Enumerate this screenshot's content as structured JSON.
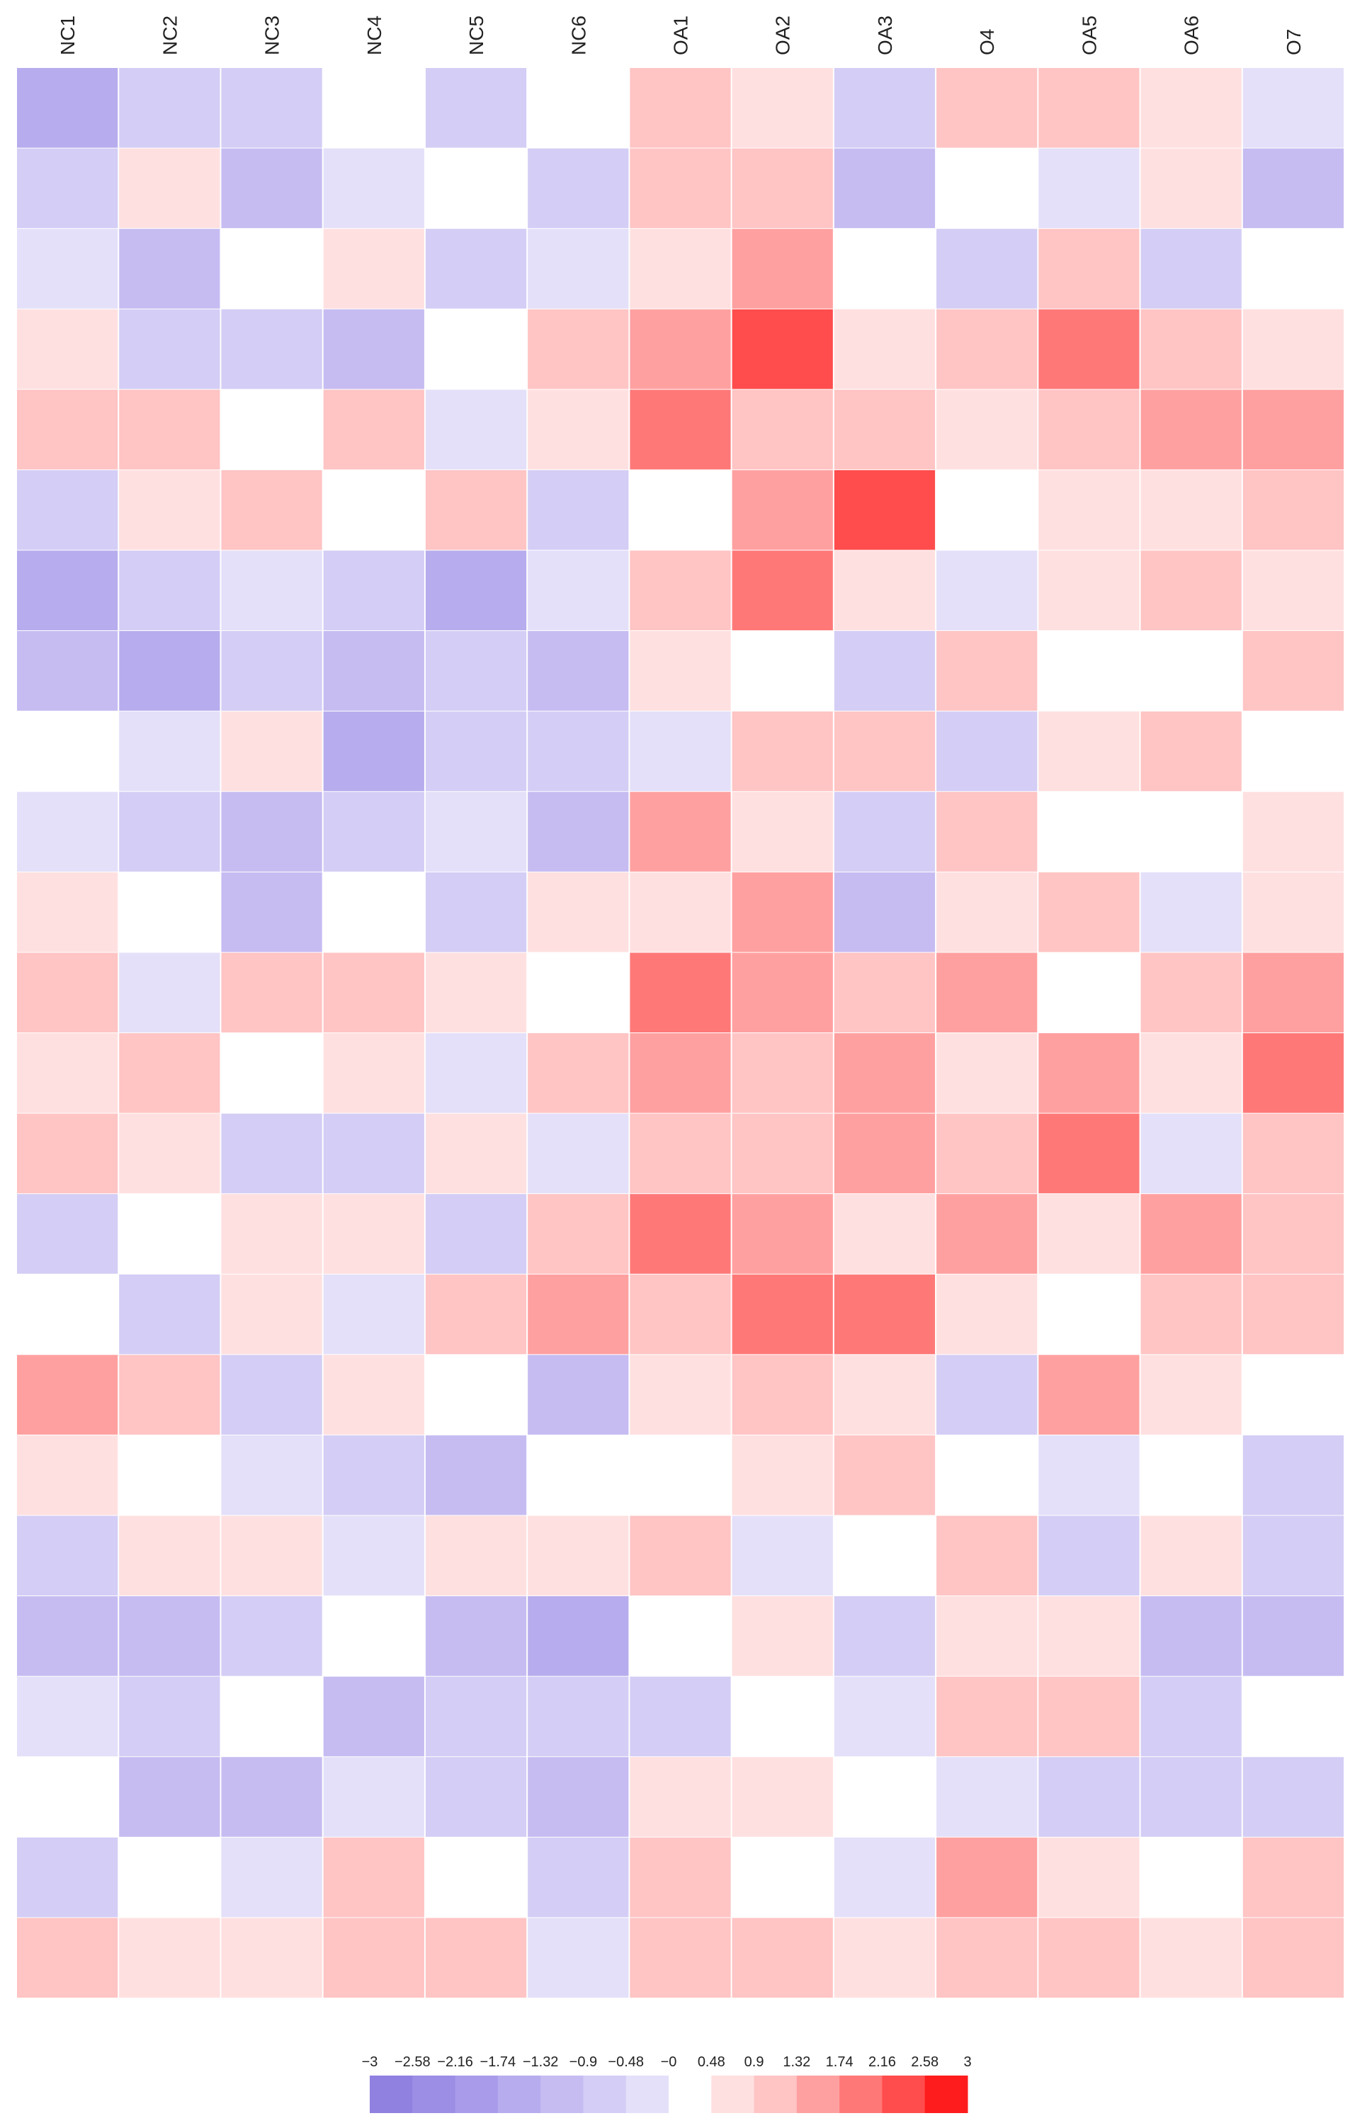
{
  "chart_data": {
    "type": "heatmap",
    "columns": [
      "NC1",
      "NC2",
      "NC3",
      "NC4",
      "NC5",
      "NC6",
      "OA1",
      "OA2",
      "OA3",
      "O4",
      "OA5",
      "OA6",
      "O7"
    ],
    "z": [
      [
        -1.5,
        -0.8,
        -0.6,
        0.3,
        -0.9,
        0.4,
        1.2,
        0.8,
        -0.5,
        1.0,
        1.3,
        0.6,
        -0.4
      ],
      [
        -0.9,
        0.5,
        -1.0,
        -0.4,
        0.2,
        -0.7,
        0.9,
        1.1,
        -1.2,
        0.4,
        -0.3,
        0.8,
        -1.1
      ],
      [
        -0.2,
        -1.3,
        0.4,
        0.7,
        -0.6,
        -0.2,
        0.6,
        1.4,
        0.3,
        -0.8,
        0.9,
        -0.5,
        0.2
      ],
      [
        0.6,
        -0.5,
        -0.8,
        -1.1,
        0.4,
        0.9,
        1.5,
        2.2,
        0.7,
        1.1,
        1.8,
        0.9,
        0.5
      ],
      [
        0.9,
        1.0,
        0.3,
        1.2,
        -0.3,
        0.5,
        2.0,
        1.3,
        1.1,
        0.6,
        1.2,
        1.6,
        1.4
      ],
      [
        -0.7,
        0.6,
        1.1,
        0.2,
        1.0,
        -0.9,
        0.4,
        1.7,
        2.3,
        0.2,
        0.8,
        0.5,
        1.0
      ],
      [
        -1.4,
        -0.9,
        -0.3,
        -0.6,
        -1.5,
        -0.4,
        1.1,
        1.9,
        0.6,
        -0.3,
        0.5,
        1.2,
        0.7
      ],
      [
        -1.0,
        -1.6,
        -0.5,
        -1.2,
        -0.8,
        -1.3,
        0.8,
        0.3,
        -0.6,
        0.9,
        0.1,
        0.4,
        1.1
      ],
      [
        0.3,
        -0.4,
        0.6,
        -1.4,
        -0.7,
        -0.6,
        -0.2,
        1.0,
        1.3,
        -0.5,
        0.7,
        0.9,
        0.3
      ],
      [
        -0.3,
        -0.8,
        -1.1,
        -0.5,
        -0.2,
        -1.0,
        1.4,
        0.5,
        -0.9,
        1.2,
        0.3,
        0.2,
        0.8
      ],
      [
        0.5,
        0.2,
        -1.3,
        0.4,
        -0.9,
        0.8,
        0.6,
        1.6,
        -1.0,
        0.5,
        1.0,
        -0.4,
        0.6
      ],
      [
        1.3,
        -0.2,
        0.9,
        1.0,
        0.6,
        0.3,
        1.8,
        1.5,
        0.9,
        1.4,
        0.4,
        1.1,
        1.6
      ],
      [
        0.8,
        1.1,
        0.2,
        0.5,
        -0.4,
        1.2,
        1.5,
        1.0,
        1.7,
        0.8,
        1.6,
        0.6,
        1.8
      ],
      [
        1.0,
        0.7,
        -0.6,
        -0.9,
        0.5,
        -0.3,
        1.2,
        0.9,
        1.4,
        1.0,
        1.9,
        -0.2,
        1.3
      ],
      [
        -0.5,
        0.4,
        0.8,
        0.6,
        -0.6,
        0.9,
        2.1,
        1.4,
        0.8,
        1.5,
        0.7,
        1.7,
        0.9
      ],
      [
        0.4,
        -0.7,
        0.5,
        -0.4,
        1.2,
        1.4,
        1.0,
        2.0,
        1.9,
        0.6,
        0.4,
        1.0,
        1.2
      ],
      [
        1.4,
        0.9,
        -0.9,
        0.8,
        0.3,
        -1.1,
        0.7,
        1.2,
        0.5,
        -0.6,
        1.4,
        0.8,
        0.4
      ],
      [
        0.7,
        0.3,
        -0.4,
        -0.7,
        -1.0,
        0.2,
        0.4,
        0.6,
        1.0,
        0.3,
        -0.2,
        0.3,
        -0.5
      ],
      [
        -0.6,
        0.8,
        0.6,
        -0.3,
        0.7,
        0.6,
        0.9,
        -0.4,
        0.2,
        1.1,
        -0.6,
        0.5,
        -0.8
      ],
      [
        -1.1,
        -1.2,
        -0.7,
        0.3,
        -1.3,
        -1.4,
        0.3,
        0.5,
        -0.7,
        0.8,
        0.6,
        -1.0,
        -1.2
      ],
      [
        -0.4,
        -0.6,
        0.2,
        -1.0,
        -0.5,
        -0.8,
        -0.5,
        0.3,
        -0.4,
        1.3,
        0.9,
        -0.7,
        0.3
      ],
      [
        0.2,
        -1.0,
        -1.2,
        -0.2,
        -0.9,
        -1.2,
        0.6,
        0.8,
        0.4,
        -0.4,
        -0.5,
        -0.9,
        -0.6
      ],
      [
        -0.8,
        0.1,
        -0.4,
        0.9,
        0.4,
        -0.5,
        1.0,
        0.4,
        -0.3,
        1.6,
        0.8,
        0.2,
        0.9
      ],
      [
        1.1,
        0.6,
        0.7,
        1.3,
        0.9,
        -0.2,
        1.3,
        1.1,
        0.6,
        1.2,
        1.0,
        0.7,
        1.1
      ]
    ],
    "colorbar": {
      "ticks": [
        {
          "value": -3,
          "label": "−3"
        },
        {
          "value": -2.58,
          "label": "−2.58"
        },
        {
          "value": -2.16,
          "label": "−2.16"
        },
        {
          "value": -1.74,
          "label": "−1.74"
        },
        {
          "value": -1.32,
          "label": "−1.32"
        },
        {
          "value": -0.9,
          "label": "−0.9"
        },
        {
          "value": -0.48,
          "label": "−0.48"
        },
        {
          "value": 0,
          "label": "−0"
        },
        0.48,
        0.9,
        1.32,
        1.74,
        2.16,
        2.58,
        3
      ],
      "colors": [
        "#9080e0",
        "#9c8de5",
        "#a99be9",
        "#b7aced",
        "#c6bcf1",
        "#d4cdf5",
        "#e4e0f9",
        "#ffffff",
        "#ffe0e0",
        "#ffc4c4",
        "#ffa0a0",
        "#ff7878",
        "#ff4c4c",
        "#ff1c1c"
      ]
    }
  }
}
